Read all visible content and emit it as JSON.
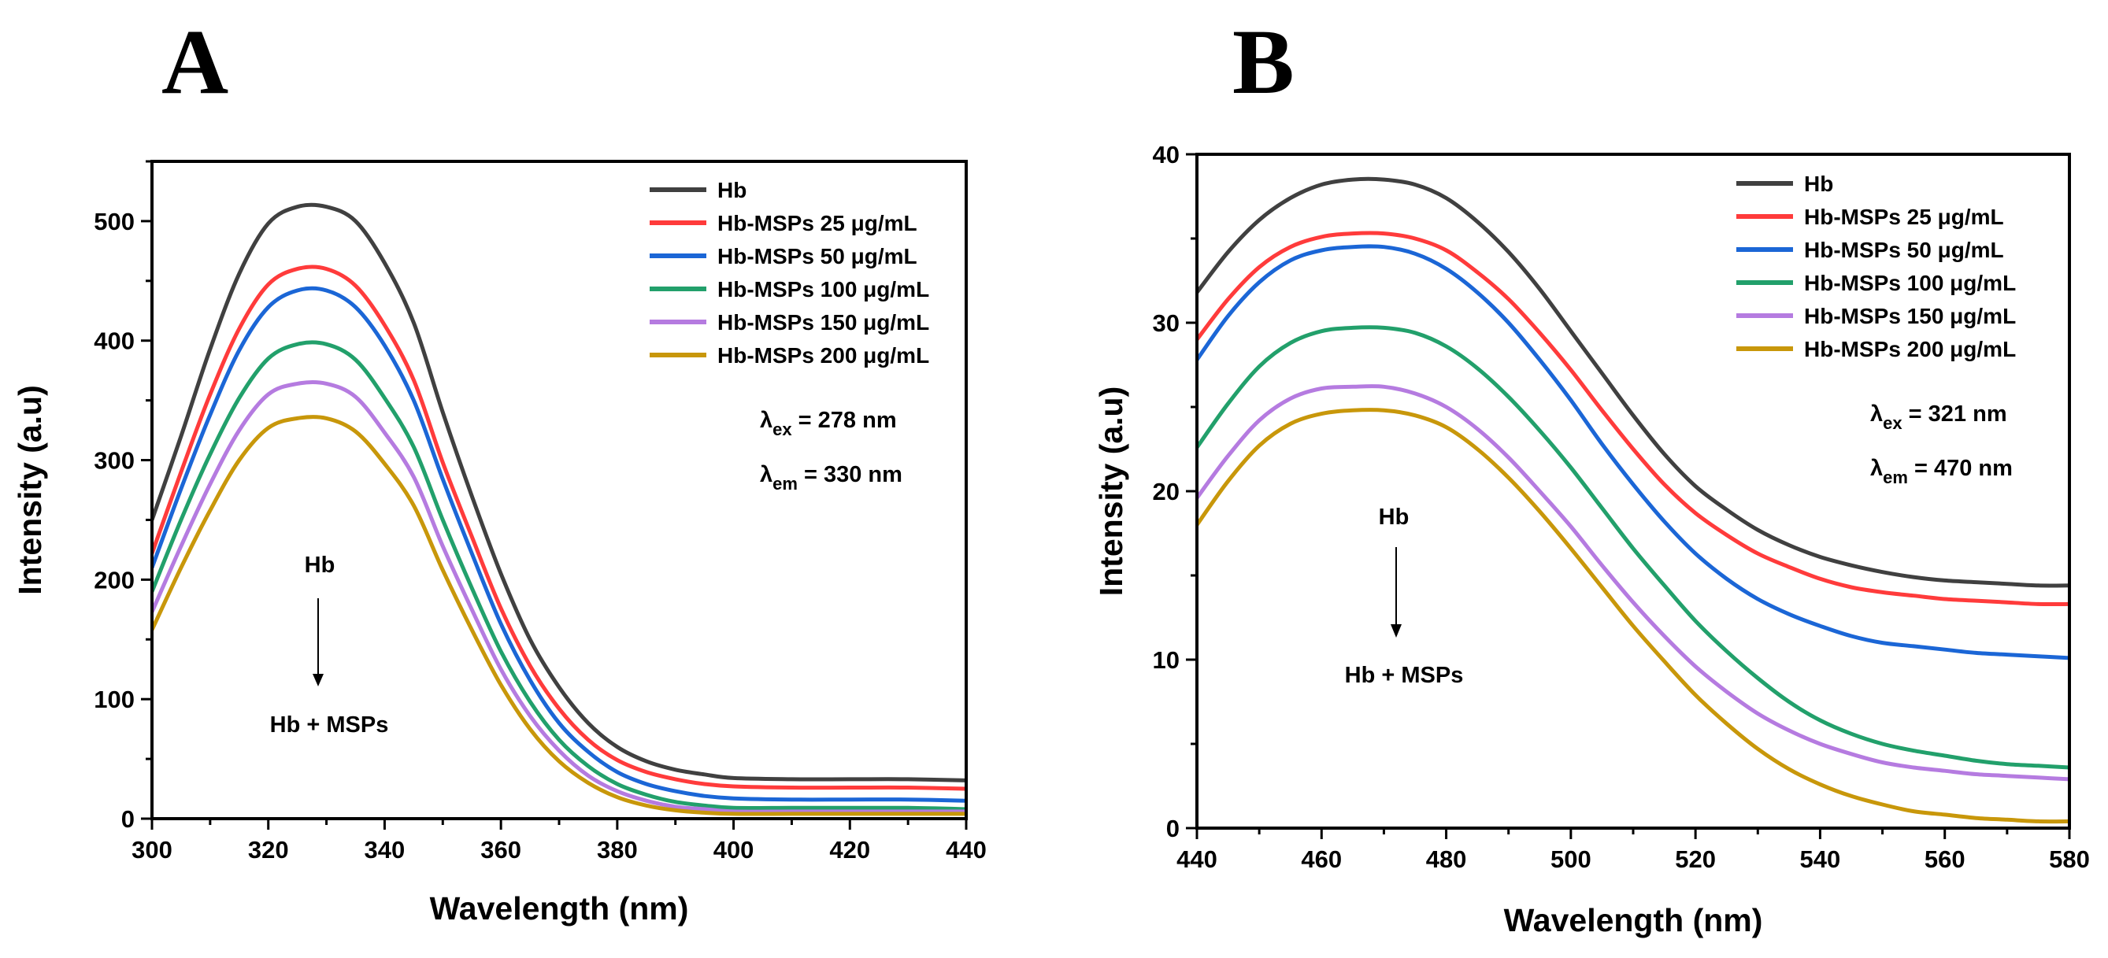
{
  "chart_data": [
    {
      "panel": "A",
      "type": "line",
      "xlabel": "Wavelength (nm)",
      "ylabel": "Intensity (a.u)",
      "xlim": [
        300,
        440
      ],
      "ylim": [
        0,
        550
      ],
      "xticks": [
        300,
        320,
        340,
        360,
        380,
        400,
        420,
        440
      ],
      "yticks": [
        0,
        100,
        200,
        300,
        400,
        500
      ],
      "legend_position": "top-right",
      "annotations": {
        "ex_symbol": "λ",
        "ex_sub": "ex",
        "ex_value": " = 278 nm",
        "em_symbol": "λ",
        "em_sub": "em",
        "em_value": " = 330 nm",
        "arrow_from": "Hb",
        "arrow_to": "Hb + MSPs"
      },
      "x": [
        300,
        305,
        310,
        315,
        320,
        325,
        330,
        335,
        340,
        345,
        350,
        355,
        360,
        365,
        370,
        375,
        380,
        385,
        390,
        395,
        400,
        410,
        420,
        430,
        440
      ],
      "series": [
        {
          "name": "Hb",
          "color": "#404040",
          "values": [
            250,
            320,
            393,
            456,
            498,
            512,
            512,
            500,
            465,
            415,
            340,
            270,
            205,
            150,
            110,
            80,
            60,
            48,
            41,
            37,
            34,
            33,
            33,
            33,
            32
          ]
        },
        {
          "name": "Hb-MSPs 25 μg/mL",
          "color": "#ff3b3b",
          "values": [
            222,
            290,
            355,
            410,
            447,
            460,
            460,
            446,
            413,
            367,
            298,
            236,
            176,
            128,
            92,
            66,
            49,
            39,
            33,
            29,
            27,
            26,
            26,
            26,
            25
          ]
        },
        {
          "name": "Hb-MSPs 50 μg/mL",
          "color": "#1b66d6",
          "values": [
            210,
            276,
            338,
            392,
            428,
            442,
            442,
            428,
            396,
            350,
            284,
            222,
            163,
            116,
            80,
            56,
            39,
            29,
            23,
            19,
            17,
            16,
            16,
            16,
            15
          ]
        },
        {
          "name": "Hb-MSPs 100 μg/mL",
          "color": "#22a06b",
          "values": [
            190,
            250,
            305,
            352,
            385,
            397,
            397,
            384,
            352,
            311,
            250,
            193,
            140,
            98,
            66,
            44,
            29,
            20,
            14,
            11,
            9,
            9,
            9,
            9,
            8
          ]
        },
        {
          "name": "Hb-MSPs 150 μg/mL",
          "color": "#b57be0",
          "values": [
            173,
            228,
            280,
            325,
            355,
            364,
            364,
            353,
            323,
            286,
            228,
            175,
            125,
            86,
            57,
            36,
            23,
            15,
            10,
            8,
            6,
            6,
            6,
            6,
            6
          ]
        },
        {
          "name": "Hb-MSPs 200 μg/mL",
          "color": "#c8970a",
          "values": [
            158,
            210,
            258,
            300,
            327,
            335,
            335,
            324,
            297,
            262,
            208,
            158,
            112,
            75,
            48,
            30,
            18,
            11,
            7,
            5,
            4,
            4,
            4,
            4,
            4
          ]
        }
      ]
    },
    {
      "panel": "B",
      "type": "line",
      "xlabel": "Wavelength (nm)",
      "ylabel": "Intensity (a.u)",
      "xlim": [
        440,
        580
      ],
      "ylim": [
        0,
        40
      ],
      "xticks": [
        440,
        460,
        480,
        500,
        520,
        540,
        560,
        580
      ],
      "yticks": [
        0,
        10,
        20,
        30,
        40
      ],
      "legend_position": "top-right",
      "annotations": {
        "ex_symbol": "λ",
        "ex_sub": "ex",
        "ex_value": " = 321 nm",
        "em_symbol": "λ",
        "em_sub": "em",
        "em_value": " = 470 nm",
        "arrow_from": "Hb",
        "arrow_to": "Hb + MSPs"
      },
      "x": [
        440,
        445,
        450,
        455,
        460,
        465,
        470,
        475,
        480,
        485,
        490,
        495,
        500,
        505,
        510,
        515,
        520,
        525,
        530,
        535,
        540,
        545,
        550,
        555,
        560,
        565,
        570,
        575,
        580
      ],
      "series": [
        {
          "name": "Hb",
          "color": "#404040",
          "values": [
            31.8,
            34.2,
            36.1,
            37.4,
            38.2,
            38.5,
            38.5,
            38.2,
            37.4,
            36.0,
            34.2,
            32.0,
            29.5,
            27.0,
            24.5,
            22.2,
            20.3,
            18.9,
            17.7,
            16.8,
            16.1,
            15.6,
            15.2,
            14.9,
            14.7,
            14.6,
            14.5,
            14.4,
            14.4
          ]
        },
        {
          "name": "Hb-MSPs 25 μg/mL",
          "color": "#ff3b3b",
          "values": [
            29.0,
            31.4,
            33.3,
            34.5,
            35.1,
            35.3,
            35.3,
            35.0,
            34.3,
            33.0,
            31.4,
            29.4,
            27.2,
            24.8,
            22.5,
            20.4,
            18.7,
            17.4,
            16.3,
            15.5,
            14.8,
            14.3,
            14.0,
            13.8,
            13.6,
            13.5,
            13.4,
            13.3,
            13.3
          ]
        },
        {
          "name": "Hb-MSPs 50 μg/mL",
          "color": "#1b66d6",
          "values": [
            27.8,
            30.4,
            32.4,
            33.7,
            34.3,
            34.5,
            34.5,
            34.1,
            33.2,
            31.8,
            30.0,
            27.8,
            25.4,
            22.8,
            20.4,
            18.2,
            16.3,
            14.8,
            13.6,
            12.7,
            12.0,
            11.4,
            11.0,
            10.8,
            10.6,
            10.4,
            10.3,
            10.2,
            10.1
          ]
        },
        {
          "name": "Hb-MSPs 100 μg/mL",
          "color": "#22a06b",
          "values": [
            22.6,
            25.2,
            27.4,
            28.8,
            29.5,
            29.7,
            29.7,
            29.4,
            28.6,
            27.3,
            25.6,
            23.6,
            21.4,
            19.0,
            16.6,
            14.4,
            12.3,
            10.5,
            8.9,
            7.5,
            6.4,
            5.6,
            5.0,
            4.6,
            4.3,
            4.0,
            3.8,
            3.7,
            3.6
          ]
        },
        {
          "name": "Hb-MSPs 150 μg/mL",
          "color": "#b57be0",
          "values": [
            19.6,
            22.1,
            24.2,
            25.5,
            26.1,
            26.2,
            26.2,
            25.8,
            25.0,
            23.7,
            22.0,
            20.0,
            17.9,
            15.6,
            13.4,
            11.4,
            9.6,
            8.1,
            6.8,
            5.8,
            5.0,
            4.4,
            3.9,
            3.6,
            3.4,
            3.2,
            3.1,
            3.0,
            2.9
          ]
        },
        {
          "name": "Hb-MSPs 200 μg/mL",
          "color": "#c8970a",
          "values": [
            18.0,
            20.6,
            22.7,
            24.0,
            24.6,
            24.8,
            24.8,
            24.5,
            23.8,
            22.5,
            20.8,
            18.8,
            16.6,
            14.3,
            12.0,
            9.9,
            7.9,
            6.2,
            4.7,
            3.5,
            2.6,
            1.9,
            1.4,
            1.0,
            0.8,
            0.6,
            0.5,
            0.4,
            0.4
          ]
        }
      ]
    }
  ]
}
